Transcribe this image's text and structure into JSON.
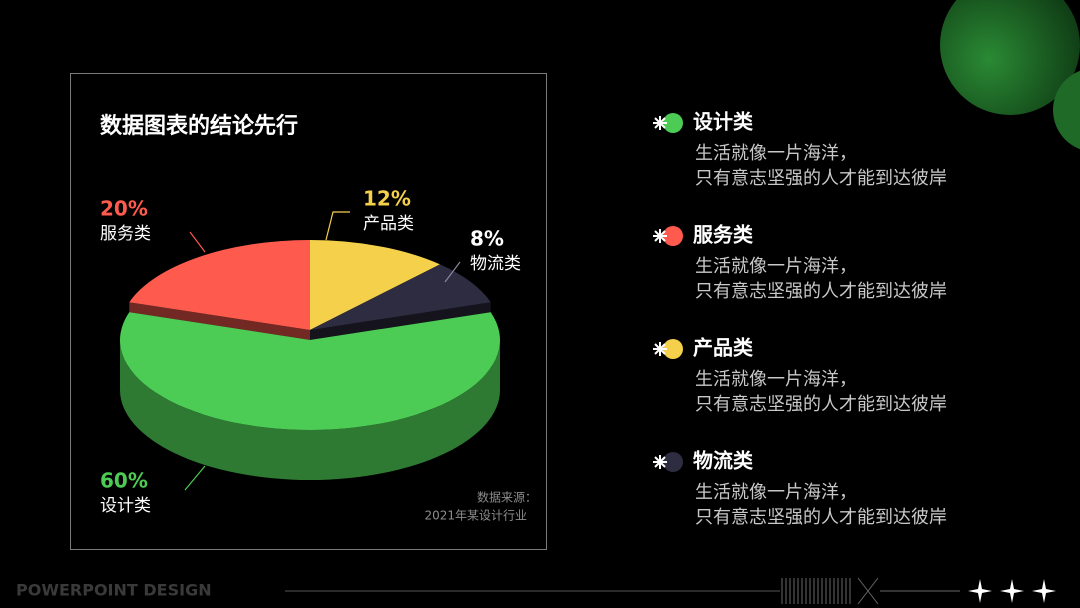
{
  "chart_data": {
    "type": "pie",
    "title": "数据图表的结论先行",
    "categories": [
      "设计类",
      "服务类",
      "产品类",
      "物流类"
    ],
    "values": [
      60,
      20,
      12,
      8
    ],
    "value_labels": [
      "60%",
      "20%",
      "12%",
      "8%"
    ],
    "colors": [
      "#4ccc55",
      "#ff5a4e",
      "#f5d04a",
      "#2e2c40"
    ],
    "source": [
      "数据来源：",
      "2021年某设计行业"
    ]
  },
  "legend_notes": [
    [
      "生活就像一片海洋，",
      "只有意志坚强的人才能到达彼岸"
    ],
    [
      "生活就像一片海洋，",
      "只有意志坚强的人才能到达彼岸"
    ],
    [
      "生活就像一片海洋，",
      "只有意志坚强的人才能到达彼岸"
    ],
    [
      "生活就像一片海洋，",
      "只有意志坚强的人才能到达彼岸"
    ]
  ],
  "footer": "POWERPOINT DESIGN"
}
